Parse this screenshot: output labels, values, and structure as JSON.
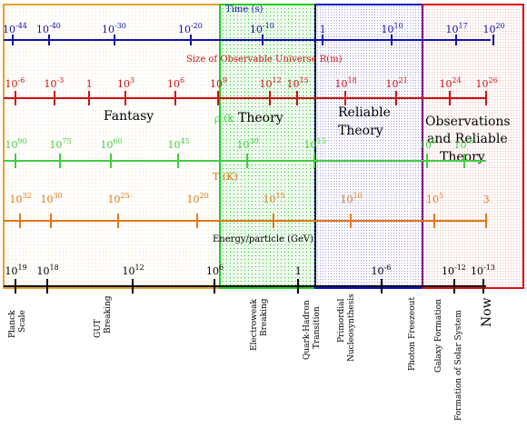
{
  "colors": {
    "fantasy": "#e8a030",
    "theory": "#22cc22",
    "reliable": "#1010cc",
    "observations": "#dd1010",
    "time_axis": "#1010aa",
    "size_axis": "#cc1010",
    "rho_axis": "#44cc44",
    "temp_axis": "#e07818",
    "energy_axis": "#000000",
    "divider_theory_reliable": "#000000",
    "divider_reliable_obs": "#880088"
  },
  "regions": {
    "fantasy": "Fantasy",
    "theory": "Theory",
    "reliable_1": "Reliable",
    "reliable_2": "Theory",
    "obs_1": "Observations",
    "obs_2": "and Reliable",
    "obs_3": "Theory"
  },
  "axes": {
    "time": {
      "title": "Time (s)",
      "ticks": [
        {
          "base": "10",
          "exp": "-44"
        },
        {
          "base": "10",
          "exp": "-40"
        },
        {
          "base": "10",
          "exp": "-30"
        },
        {
          "base": "10",
          "exp": "-20"
        },
        {
          "base": "10",
          "exp": "-10"
        },
        {
          "base": "1",
          "exp": ""
        },
        {
          "base": "10",
          "exp": "10"
        },
        {
          "base": "10",
          "exp": "17"
        },
        {
          "base": "10",
          "exp": "20"
        }
      ]
    },
    "size": {
      "title": "Size of Observable Universe R(m)",
      "ticks": [
        {
          "base": "10",
          "exp": "-6"
        },
        {
          "base": "10",
          "exp": "-3"
        },
        {
          "base": "1",
          "exp": ""
        },
        {
          "base": "10",
          "exp": "3"
        },
        {
          "base": "10",
          "exp": "6"
        },
        {
          "base": "10",
          "exp": "9"
        },
        {
          "base": "10",
          "exp": "12"
        },
        {
          "base": "10",
          "exp": "15"
        },
        {
          "base": "10",
          "exp": "18"
        },
        {
          "base": "10",
          "exp": "21"
        },
        {
          "base": "10",
          "exp": "24"
        },
        {
          "base": "10",
          "exp": "26"
        }
      ]
    },
    "rho": {
      "title": "ρ (k",
      "ticks": [
        {
          "base": "10",
          "exp": "90"
        },
        {
          "base": "10",
          "exp": "75"
        },
        {
          "base": "10",
          "exp": "60"
        },
        {
          "base": "10",
          "exp": "45"
        },
        {
          "base": "10",
          "exp": "30"
        },
        {
          "base": "10",
          "exp": "15"
        },
        {
          "base": "10",
          "exp": "0"
        },
        {
          "base": "10",
          "exp": "-6"
        }
      ]
    },
    "temp": {
      "title": "T (K)",
      "ticks": [
        {
          "base": "10",
          "exp": "32"
        },
        {
          "base": "10",
          "exp": "30"
        },
        {
          "base": "10",
          "exp": "25"
        },
        {
          "base": "10",
          "exp": "20"
        },
        {
          "base": "10",
          "exp": "15"
        },
        {
          "base": "10",
          "exp": "10"
        },
        {
          "base": "10",
          "exp": "5"
        },
        {
          "base": "3",
          "exp": ""
        }
      ]
    },
    "energy": {
      "title": "Energy/particle (GeV)",
      "ticks": [
        {
          "base": "10",
          "exp": "19"
        },
        {
          "base": "10",
          "exp": "18"
        },
        {
          "base": "10",
          "exp": "12"
        },
        {
          "base": "10",
          "exp": "6"
        },
        {
          "base": "1",
          "exp": ""
        },
        {
          "base": "10",
          "exp": "-6"
        },
        {
          "base": "10",
          "exp": "-12"
        },
        {
          "base": "10",
          "exp": "-13"
        }
      ]
    }
  },
  "events": {
    "planck_1": "Planck",
    "planck_2": "Scale",
    "gut_1": "GUT",
    "gut_2": "Breaking",
    "electroweak_1": "Electroweak",
    "electroweak_2": "Breaking",
    "quark_1": "Quark-Hadron",
    "quark_2": "Transition",
    "nucleo_1": "Primordial",
    "nucleo_2": "Nucleosynthesis",
    "photon": "Photon Freezeout",
    "galaxy": "Galaxy Formation",
    "solar": "Formation of Solar System",
    "now": "Now"
  }
}
